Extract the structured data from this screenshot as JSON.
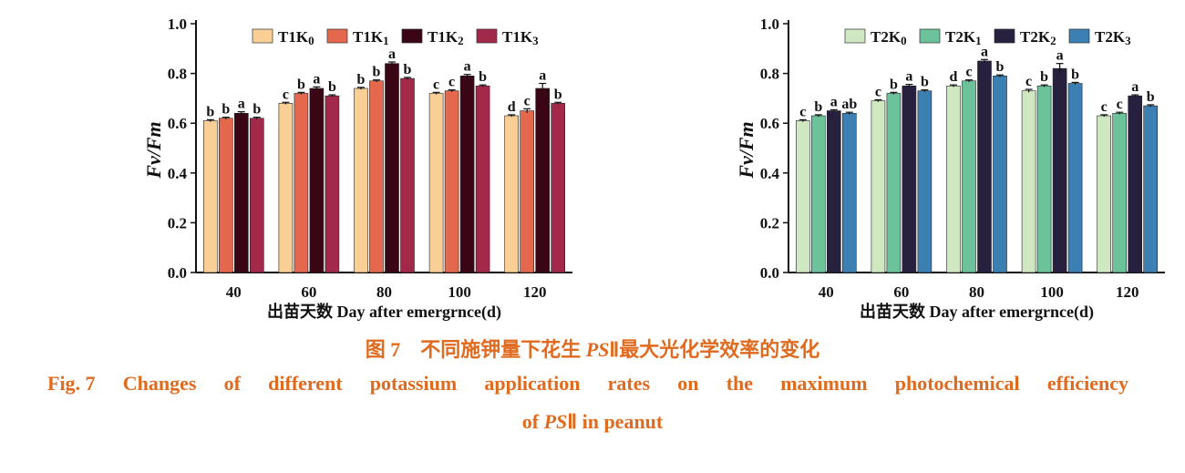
{
  "chart_data": [
    {
      "type": "bar",
      "ylabel": "Fv/Fm",
      "xlabel": "出苗天数 Day after emergrnce(d)",
      "ylim": [
        0.0,
        1.0
      ],
      "yticks": [
        "0.0",
        "0.2",
        "0.4",
        "0.6",
        "0.8",
        "1.0"
      ],
      "categories": [
        "40",
        "60",
        "80",
        "100",
        "120"
      ],
      "legend_position": "top",
      "series": [
        {
          "name": "T1K0",
          "name_main": "T1K",
          "name_sub": "0",
          "color": "#f9cf95",
          "values": [
            0.61,
            0.68,
            0.74,
            0.72,
            0.63
          ],
          "errors": [
            0.004,
            0.004,
            0.004,
            0.004,
            0.004
          ],
          "letters": [
            "b",
            "c",
            "b",
            "c",
            "d"
          ]
        },
        {
          "name": "T1K1",
          "name_main": "T1K",
          "name_sub": "1",
          "color": "#e4684e",
          "values": [
            0.62,
            0.72,
            0.77,
            0.73,
            0.65
          ],
          "errors": [
            0.004,
            0.004,
            0.004,
            0.004,
            0.008
          ],
          "letters": [
            "b",
            "b",
            "b",
            "c",
            "c"
          ]
        },
        {
          "name": "T1K2",
          "name_main": "T1K",
          "name_sub": "2",
          "color": "#3a0616",
          "values": [
            0.64,
            0.74,
            0.84,
            0.79,
            0.74
          ],
          "errors": [
            0.006,
            0.006,
            0.006,
            0.006,
            0.02
          ],
          "letters": [
            "a",
            "a",
            "a",
            "a",
            "a"
          ]
        },
        {
          "name": "T1K3",
          "name_main": "T1K",
          "name_sub": "3",
          "color": "#a3294a",
          "values": [
            0.62,
            0.71,
            0.78,
            0.75,
            0.68
          ],
          "errors": [
            0.004,
            0.004,
            0.004,
            0.004,
            0.004
          ],
          "letters": [
            "b",
            "b",
            "b",
            "b",
            "b"
          ]
        }
      ]
    },
    {
      "type": "bar",
      "ylabel": "Fv/Fm",
      "xlabel": "出苗天数 Day after emergrnce(d)",
      "ylim": [
        0.0,
        1.0
      ],
      "yticks": [
        "0.0",
        "0.2",
        "0.4",
        "0.6",
        "0.8",
        "1.0"
      ],
      "categories": [
        "40",
        "60",
        "80",
        "100",
        "120"
      ],
      "legend_position": "top",
      "series": [
        {
          "name": "T2K0",
          "name_main": "T2K",
          "name_sub": "0",
          "color": "#cfe8c2",
          "values": [
            0.61,
            0.69,
            0.75,
            0.73,
            0.63
          ],
          "errors": [
            0.004,
            0.004,
            0.004,
            0.006,
            0.004
          ],
          "letters": [
            "c",
            "c",
            "d",
            "c",
            "c"
          ]
        },
        {
          "name": "T2K1",
          "name_main": "T2K",
          "name_sub": "1",
          "color": "#6cc29b",
          "values": [
            0.63,
            0.72,
            0.77,
            0.75,
            0.64
          ],
          "errors": [
            0.004,
            0.004,
            0.004,
            0.004,
            0.004
          ],
          "letters": [
            "b",
            "b",
            "c",
            "b",
            "c"
          ]
        },
        {
          "name": "T2K2",
          "name_main": "T2K",
          "name_sub": "2",
          "color": "#27203f",
          "values": [
            0.65,
            0.75,
            0.85,
            0.82,
            0.71
          ],
          "errors": [
            0.004,
            0.006,
            0.006,
            0.02,
            0.004
          ],
          "letters": [
            "a",
            "a",
            "a",
            "a",
            "a"
          ]
        },
        {
          "name": "T2K3",
          "name_main": "T2K",
          "name_sub": "3",
          "color": "#3b7fb3",
          "values": [
            0.64,
            0.73,
            0.79,
            0.76,
            0.67
          ],
          "errors": [
            0.004,
            0.004,
            0.004,
            0.004,
            0.004
          ],
          "letters": [
            "ab",
            "b",
            "b",
            "b",
            "b"
          ]
        }
      ]
    }
  ],
  "caption": {
    "cn_prefix": "图 7　不同施钾量下花生 ",
    "cn_ps": "PS",
    "cn_suffix": "Ⅱ最大光化学效率的变化",
    "en_fig": "Fig. 7",
    "en_line1_words": [
      "Changes",
      "of",
      "different",
      "potassium",
      "application",
      "rates",
      "on",
      "the",
      "maximum",
      "photochemical",
      "efficiency"
    ],
    "en_of": "of ",
    "en_ps": "PS",
    "en_suffix": "Ⅱ in peanut"
  }
}
